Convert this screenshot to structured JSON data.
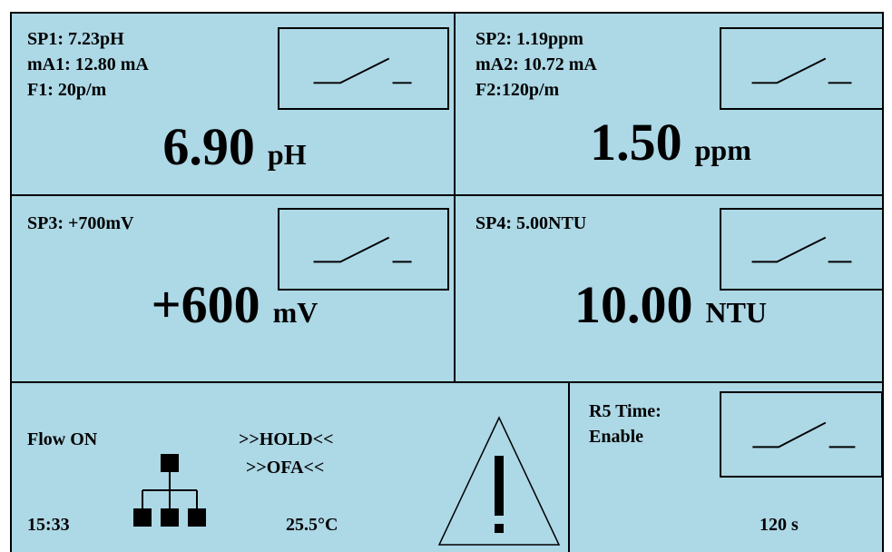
{
  "p1": {
    "sp": "SP1: 7.23pH",
    "ma": "mA1: 12.80 mA",
    "flow": "F1: 20p/m",
    "value": "6.90",
    "unit": "pH"
  },
  "p2": {
    "sp": "SP2: 1.19ppm",
    "ma": "mA2: 10.72 mA",
    "flow": "F2:120p/m",
    "value": "1.50",
    "unit": "ppm"
  },
  "p3": {
    "sp": "SP3: +700mV",
    "value": "+600",
    "unit": "mV"
  },
  "p4": {
    "sp": "SP4: 5.00NTU",
    "value": "10.00",
    "unit": "NTU"
  },
  "status": {
    "flow": "Flow ON",
    "hold": ">>HOLD<<",
    "ofa": ">>OFA<<",
    "time": "15:33",
    "temp": "25.5°C"
  },
  "r5": {
    "line1": "R5 Time:",
    "line2": "Enable",
    "seconds": "120 s"
  },
  "colors": {
    "panel_bg": "#add8e6",
    "border": "#000000"
  },
  "icons": {
    "relay": "relay-switch-icon",
    "network": "network-tree-icon",
    "warning": "warning-triangle-icon"
  }
}
